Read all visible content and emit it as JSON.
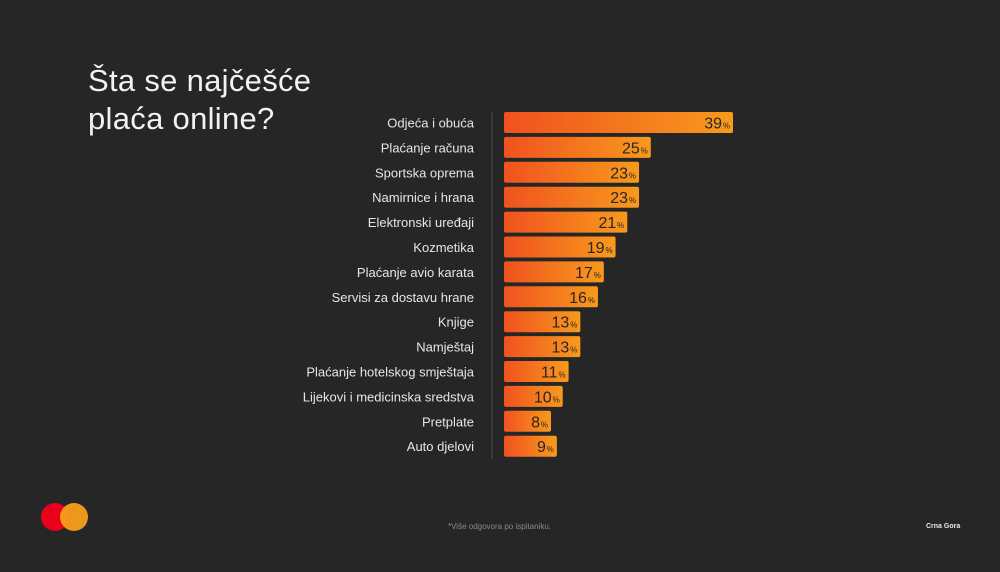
{
  "title": {
    "line1": "Šta se najčešće",
    "line2": "plaća online?"
  },
  "footnote": "*Više odgovora po ispitaniku.",
  "region": "Crna Gora",
  "colors": {
    "background": "#262626",
    "bar_start": "#f0521f",
    "bar_end": "#f89a1c",
    "value_text": "#262626",
    "label_text": "#e6e6e6",
    "logo_red": "#eb001b",
    "logo_orange": "#f79e1b"
  },
  "chart_data": {
    "type": "bar",
    "orientation": "horizontal",
    "categories": [
      "Odjeća i obuća",
      "Plaćanje računa",
      "Sportska oprema",
      "Namirnice i hrana",
      "Elektronski uređaji",
      "Kozmetika",
      "Plaćanje avio karata",
      "Servisi za dostavu hrane",
      "Knjige",
      "Namještaj",
      "Plaćanje hotelskog smještaja",
      "Lijekovi i medicinska sredstva",
      "Pretplate",
      "Auto djelovi"
    ],
    "values": [
      39,
      25,
      23,
      23,
      21,
      19,
      17,
      16,
      13,
      13,
      11,
      10,
      8,
      9
    ],
    "unit": "%",
    "xlim": [
      0,
      39
    ],
    "grid": false,
    "legend": "none"
  }
}
